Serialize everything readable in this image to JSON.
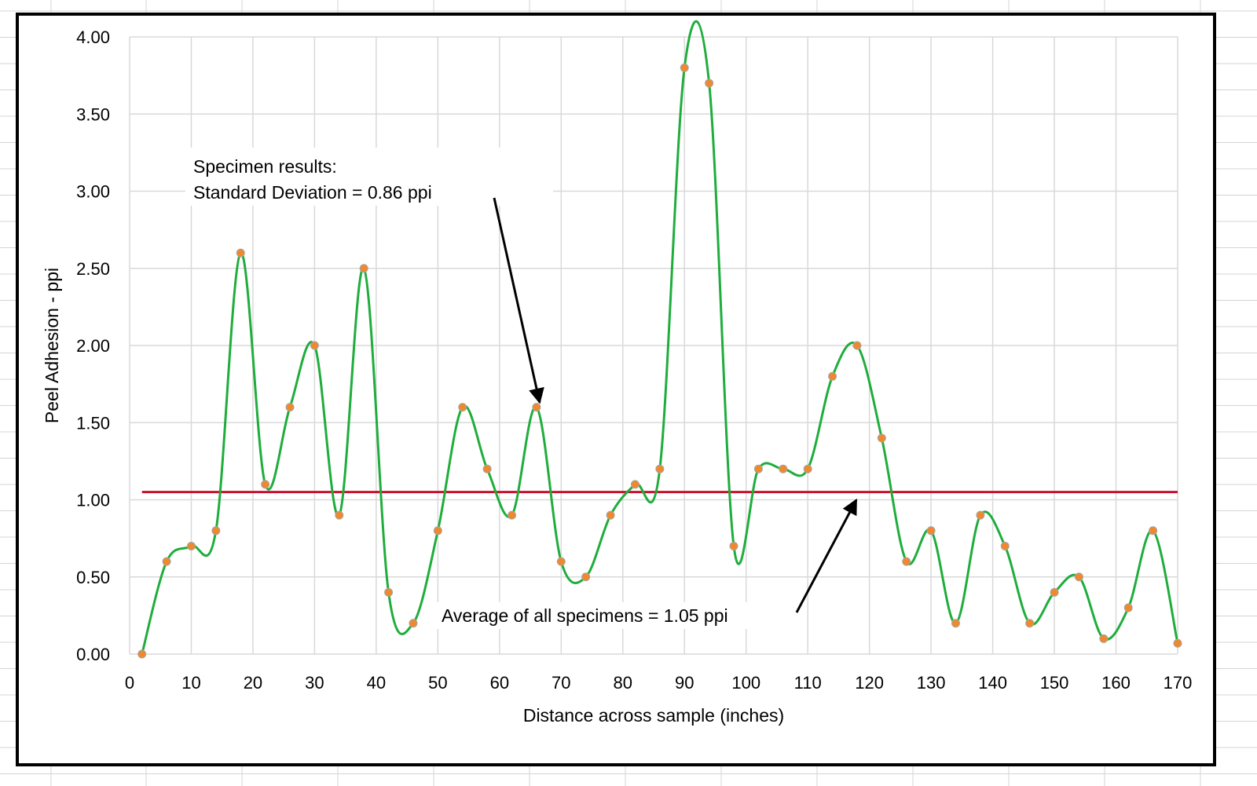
{
  "chart_data": {
    "type": "line",
    "title": "",
    "xlabel": "Distance across sample (inches)",
    "ylabel": "Peel Adhesion - ppi",
    "xlim": [
      0,
      170
    ],
    "ylim": [
      0,
      4
    ],
    "x_ticks": [
      "0",
      "10",
      "20",
      "30",
      "40",
      "50",
      "60",
      "70",
      "80",
      "90",
      "100",
      "110",
      "120",
      "130",
      "140",
      "150",
      "160",
      "170"
    ],
    "y_ticks": [
      "0.00",
      "0.50",
      "1.00",
      "1.50",
      "2.00",
      "2.50",
      "3.00",
      "3.50",
      "4.00"
    ],
    "grid": true,
    "legend": "none",
    "series": [
      {
        "color": "#1fad3c",
        "marker_color": "#f0882e",
        "smooth": true,
        "x": [
          2,
          6,
          10,
          14,
          18,
          22,
          26,
          30,
          34,
          38,
          42,
          46,
          50,
          54,
          58,
          62,
          66,
          70,
          74,
          78,
          82,
          86,
          90,
          94,
          98,
          102,
          106,
          110,
          114,
          118,
          122,
          126,
          130,
          134,
          138,
          142,
          146,
          150,
          154,
          158,
          162,
          166,
          170
        ],
        "y": [
          0.0,
          0.6,
          0.7,
          0.8,
          2.6,
          1.1,
          1.6,
          2.0,
          0.9,
          2.5,
          0.4,
          0.2,
          0.8,
          1.6,
          1.2,
          0.9,
          1.6,
          0.6,
          0.5,
          0.9,
          1.1,
          1.2,
          3.8,
          3.7,
          0.7,
          1.2,
          1.2,
          1.2,
          1.8,
          2.0,
          1.4,
          0.6,
          0.8,
          0.2,
          0.9,
          0.7,
          0.2,
          0.4,
          0.5,
          0.1,
          0.3,
          0.8,
          0.07
        ]
      }
    ],
    "reference_line": {
      "y": 1.05,
      "x": [
        2,
        170
      ],
      "color": "#c8102e"
    },
    "annotations": [
      {
        "lines": [
          "Specimen results:",
          "Standard Deviation = 0.86 ppi"
        ],
        "arrow_to": {
          "x": 66,
          "y": 1.6
        }
      },
      {
        "lines": [
          "Average of all specimens = 1.05 ppi"
        ],
        "arrow_to": {
          "x": 118,
          "y": 1.05
        }
      }
    ]
  }
}
